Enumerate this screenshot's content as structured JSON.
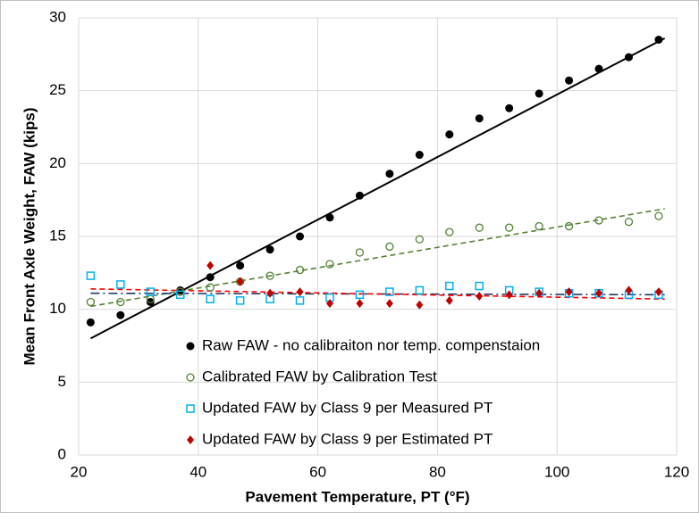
{
  "chart_data": {
    "type": "scatter",
    "xlabel": "Pavement Temperature, PT (°F)",
    "ylabel": "Mean Front Axle Weight, FAW (kips)",
    "xlim": [
      20,
      120
    ],
    "xticks": [
      20,
      40,
      60,
      80,
      100,
      120
    ],
    "ylim": [
      0,
      30
    ],
    "yticks": [
      0,
      5,
      10,
      15,
      20,
      25,
      30
    ],
    "grid": true,
    "legend": "lower center",
    "series": [
      {
        "name": "Raw FAW - no calibraiton nor temp. compenstaion",
        "color": "#000000",
        "marker": "filled-circle",
        "x": [
          22,
          27,
          32,
          37,
          42,
          47,
          52,
          57,
          62,
          67,
          72,
          77,
          82,
          87,
          92,
          97,
          102,
          107,
          112,
          117
        ],
        "values": [
          9.1,
          9.6,
          10.5,
          11.3,
          12.2,
          13.0,
          14.1,
          15.0,
          16.3,
          17.8,
          19.3,
          20.6,
          22.0,
          23.1,
          23.8,
          24.8,
          25.7,
          26.5,
          27.3,
          28.5
        ],
        "trendline": {
          "x": [
            22,
            118
          ],
          "values": [
            8.0,
            28.6
          ],
          "color": "#000000",
          "dash": "solid"
        }
      },
      {
        "name": "Calibrated FAW by Calibration Test",
        "color": "#548235",
        "marker": "open-circle",
        "x": [
          22,
          27,
          32,
          37,
          42,
          47,
          52,
          57,
          62,
          67,
          72,
          77,
          82,
          87,
          92,
          97,
          102,
          107,
          112,
          117
        ],
        "values": [
          10.5,
          10.5,
          10.7,
          11.2,
          11.5,
          11.9,
          12.3,
          12.7,
          13.1,
          13.9,
          14.3,
          14.8,
          15.3,
          15.6,
          15.6,
          15.7,
          15.7,
          16.1,
          16.0,
          16.4
        ],
        "trendline": {
          "x": [
            22,
            118
          ],
          "values": [
            10.2,
            16.9
          ],
          "color": "#548235",
          "dash": "dashed"
        }
      },
      {
        "name": "Updated FAW by Class 9 per Measured PT",
        "color": "#00b0f0",
        "marker": "open-square",
        "x": [
          22,
          27,
          32,
          37,
          42,
          47,
          52,
          57,
          62,
          67,
          72,
          77,
          82,
          87,
          92,
          97,
          102,
          107,
          112,
          117
        ],
        "values": [
          12.3,
          11.7,
          11.2,
          11.0,
          10.7,
          10.6,
          10.7,
          10.6,
          10.8,
          11.0,
          11.2,
          11.3,
          11.6,
          11.6,
          11.3,
          11.2,
          11.1,
          11.1,
          11.0,
          11.0
        ],
        "trendline": {
          "x": [
            22,
            118
          ],
          "values": [
            11.1,
            11.0
          ],
          "color": "#1f3864",
          "dash": "dashdot"
        }
      },
      {
        "name": "Updated FAW by Class 9 per Estimated PT",
        "color": "#c00000",
        "marker": "diamond",
        "x": [
          42,
          47,
          52,
          57,
          62,
          67,
          72,
          77,
          82,
          87,
          92,
          97,
          102,
          107,
          112,
          117
        ],
        "values": [
          13.0,
          11.9,
          11.1,
          11.2,
          10.4,
          10.4,
          10.4,
          10.3,
          10.6,
          10.9,
          11.0,
          11.1,
          11.2,
          11.1,
          11.3,
          11.2
        ],
        "trendline": {
          "x": [
            22,
            118
          ],
          "values": [
            11.4,
            10.7
          ],
          "color": "#ff0000",
          "dash": "dashed"
        }
      }
    ]
  }
}
